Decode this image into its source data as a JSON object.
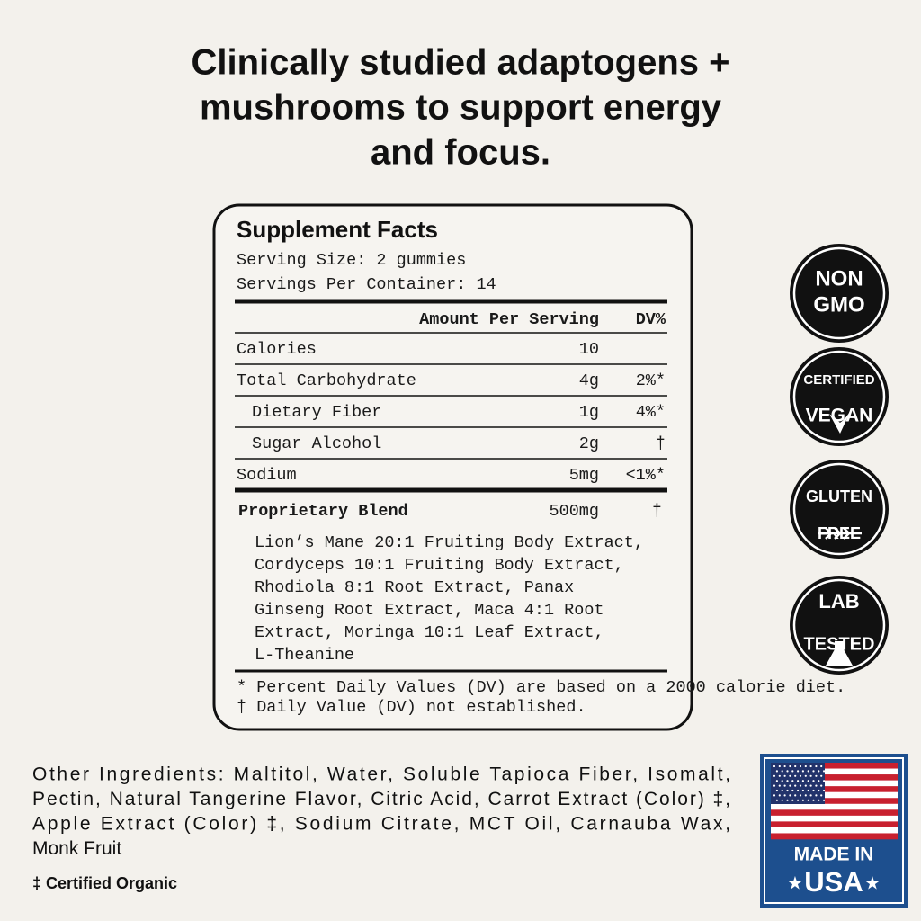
{
  "headline": [
    "Clinically studied adaptogens +",
    "mushrooms to support energy",
    "and focus."
  ],
  "facts": {
    "title": "Supplement Facts",
    "serving_size": "Serving Size: 2 gummies",
    "servings_per_container": "Servings Per Container: 14",
    "header": [
      "Amount Per Serving",
      "DV%"
    ],
    "rows": [
      {
        "label": "Calories",
        "amount": "10"
      },
      {
        "label": "Total Carbohydrate",
        "amount": "4g",
        "dv": "2%*",
        "sub": [
          {
            "label": "Dietary Fiber",
            "amount": "1g",
            "dv": "4%*"
          },
          {
            "label": "Sugar Alcohol",
            "amount": "2g",
            "dv": "†"
          }
        ]
      },
      {
        "label": "Sodium",
        "amount": "5mg",
        "dv": "<1%*"
      }
    ],
    "blend": {
      "label": "Proprietary Blend",
      "amount": "500mg",
      "dv": "†",
      "ingredients": [
        "Lion’s Mane 20:1 Fruiting Body Extract,",
        "Cordyceps 10:1 Fruiting Body Extract,",
        "Rhodiola 8:1 Root Extract, Panax",
        "Ginseng Root Extract, Maca 4:1 Root",
        "Extract, Moringa 10:1 Leaf Extract,",
        "L-Theanine"
      ]
    },
    "footnotes": [
      "* Percent Daily Values (DV) are based on a 2000 calorie diet.",
      "† Daily Value (DV) not established."
    ]
  },
  "badges": [
    [
      "NON",
      "GMO"
    ],
    [
      "CERTIFIED",
      "VEGAN"
    ],
    [
      "GLUTEN",
      "FREE"
    ],
    [
      "LAB",
      "TESTED"
    ]
  ],
  "other_ingredients": [
    "Other Ingredients: Maltitol, Water, Soluble Tapioca Fiber, Isomalt,",
    "Pectin, Natural Tangerine Flavor, Citric Acid, Carrot Extract (Color) ‡,",
    "Apple Extract (Color) ‡, Sodium Citrate, MCT Oil, Carnauba Wax,",
    "Monk Fruit"
  ],
  "certified_note": "‡ Certified Organic",
  "made_in": [
    "MADE IN",
    "USA"
  ]
}
